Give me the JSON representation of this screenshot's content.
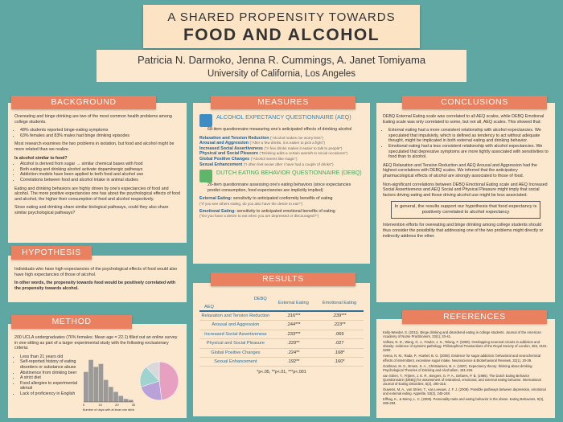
{
  "header": {
    "title_line1": "A SHARED PROPENSITY TOWARDS",
    "title_line2": "FOOD AND ALCOHOL",
    "authors": "Patricia N. Darmoko, Jenna R. Cummings, A. Janet Tomiyama",
    "affiliation": "University of California, Los Angeles"
  },
  "background": {
    "heading": "BACKGROUND",
    "intro": "Overeating and binge drinking are two of the most common health problems among college students.",
    "stats": [
      "48% students reported binge-eating symptoms",
      "63% females and 83% males had binge drinking episodes"
    ],
    "note": "Most research examines the two problems in isolation, but food and alcohol might be more related than we realize.",
    "question": "Is alcohol similar to food?",
    "facts": [
      "Alcohol is derived from sugar → similar chemical bases with food",
      "Both eating and drinking alcohol activate dopaminergic pathways",
      "Addiction models have been applied to both food and alcohol use",
      "Correlations between food and alcohol intake in animal studies"
    ],
    "expectancy": "Eating and drinking behaviors are highly driven by one's expectancies of food and alcohol. The more positive expectancies one has about the psychological effects of food and alcohol, the higher their consumption of food and alcohol respectively.",
    "closing": "Since eating and drinking share similar biological pathways, could they also share similar psychological pathways?"
  },
  "hypothesis": {
    "heading": "HYPOTHESIS",
    "paragraphs": [
      "Individuals who have high expectancies of the psychological effects of food would also have high expectancies of those of alcohol.",
      "In other words, the propensity towards food would be positively correlated with the propensity towards alcohol."
    ]
  },
  "method": {
    "heading": "METHOD",
    "intro": "200 UCLA undergraduates (76% females; Mean age = 22.1) filled out an online survey in one-sitting as part of a larger experimental study with the following exclusionary criteria:",
    "criteria": [
      "Less than 21 years old",
      "Self-reported history of eating disorders or substance abuse",
      "Abstinence from drinking beer",
      "A strict diet",
      "Food allergies to experimental stimuli",
      "Lack of proficiency in English"
    ],
    "chart": {
      "x_label": "Number of days with at least one drink",
      "bins": [
        0,
        3,
        6,
        9,
        12,
        15,
        18,
        21,
        24,
        27,
        30
      ],
      "counts": [
        30,
        42,
        35,
        38,
        22,
        15,
        10,
        6,
        3,
        2
      ],
      "ylim": [
        0,
        45
      ],
      "bar_color": "#9a9a9a",
      "xticks": [
        0,
        10,
        20,
        30
      ],
      "pie": [
        {
          "value": 48,
          "color": "#e8a0c0"
        },
        {
          "value": 22,
          "color": "#b9a2d8"
        },
        {
          "value": 18,
          "color": "#9fd3d0"
        },
        {
          "value": 12,
          "color": "#d9d9d9"
        }
      ]
    }
  },
  "measures": {
    "heading": "MEASURES",
    "aeq": {
      "title": "ALCOHOL EXPECTANCY QUESTIONNAIRE (AEQ)",
      "description": "68-item questionnaire measuring one's anticipated effects of drinking alcohol",
      "scales": [
        {
          "name": "Relaxation and Tension Reduction",
          "example": "(\"Alcohol makes me worry less\")"
        },
        {
          "name": "Arousal and Aggression",
          "example": "(\"After a few drinks, it is easier to pick a fight\")"
        },
        {
          "name": "Increased Social Assertiveness",
          "example": "(\"A few drinks makes it easier to talk to people\")"
        },
        {
          "name": "Physical and Social Pleasure",
          "example": "(\"Drinking adds a certain warmth to social occasions\")"
        },
        {
          "name": "Global Positive Changes",
          "example": "(\"Alcohol seems like magic\")"
        },
        {
          "name": "Sexual Enhancement",
          "example": "(\"I often feel sexier after I have had a couple of drinks\")"
        }
      ]
    },
    "debq": {
      "title": "DUTCH EATING BEHAVIOR QUESTIONNAIRE (DEBQ)",
      "description": "26-item questionnaire assessing one's eating behaviors (since expectancies predict consumption, food expectancies are implicitly implied)",
      "scales": [
        {
          "name": "External Eating:",
          "definition": "sensitivity to anticipated conformity benefits of eating",
          "example": "(\"If you see others eating, do you also have the desire to eat?\")"
        },
        {
          "name": "Emotional Eating:",
          "definition": "sensitivity to anticipated emotional benefits of eating",
          "example": "(\"Do you have a desire to eat when you are depressed or discouraged?\")"
        }
      ]
    }
  },
  "results": {
    "heading": "RESULTS",
    "corner_top": "DEBQ",
    "corner_bottom": "AEQ",
    "columns": [
      "External Eating",
      "Emotional Eating"
    ],
    "rows": [
      {
        "scale": "Relaxation and Tension Reduction",
        "external": ".316***",
        "emotional": ".239***"
      },
      {
        "scale": "Arousal and Aggression",
        "external": ".244***",
        "emotional": ".223**"
      },
      {
        "scale": "Increased Social Assertiveness",
        "external": ".233***",
        "emotional": ".069"
      },
      {
        "scale": "Physical and Social Pleasure",
        "external": ".229**",
        "emotional": ".027"
      },
      {
        "scale": "Global Positive Changes",
        "external": ".224**",
        "emotional": ".168*"
      },
      {
        "scale": "Sexual Enhancement",
        "external": ".192**",
        "emotional": ".160*"
      }
    ],
    "footnote": "*p<.05, **p<.01, ***p<.001"
  },
  "conclusions": {
    "heading": "CONCLUSIONS",
    "intro": "DEBQ External Eating scale was correlated to all AEQ scales, while DEBQ Emotional Eating scale was only correlated to some, but not all, AEQ scales. This showed that:",
    "points": [
      "External eating had a more consistent relationship with alcohol expectancies. We speculated that impulsivity, which is defined as tendency to act without adequate thought, might be implicated in both external eating and drinking behavior.",
      "Emotional eating had a less consistent relationship with alcohol expectancies. We speculated that depressive symptoms are more tightly associated with sensitivities to food than to alcohol."
    ],
    "pharmacology": "AEQ Relaxation and Tension Reduction and AEQ Arousal and Aggression had the highest correlations with DEBQ scales. We inferred that the anticipatory pharmacological effects of alcohol are strongly associated to those of food.",
    "social": "Non-significant correlations between DEBQ Emotional Eating scale and AEQ Increased Social Assertiveness and AEQ Social and Physical Pleasure might imply that social factors driving eating and those driving alcohol use might be less associated.",
    "summary": "In general, the results support our hypothesis that food expectancy is positively correlated to alcohol expectancy",
    "implication": "Intervention efforts for overeating and binge drinking among college students should thus consider the possibility that addressing one of the two problems might directly or indirectly address the other."
  },
  "references": {
    "heading": "REFERENCES",
    "items": [
      "Kelly-Weeder, S. (2011). Binge drinking and disordered eating in college students. Journal of the American Academy of Nurse Practitioners, 23(1), 33-41.",
      "Volkow, N. D., Wang, G. J., Fowler, J. S., Telang, F. (2008). Overlapping neuronal circuits in addiction and obesity: evidence of systems pathology. Philosophical Transactions of the Royal Society of London, 363, 3191-3200.",
      "Avena, N. M., Rada, P., Hoebel, B. G. (2008). Evidence for sugar addiction: behavioral and neurochemical effects of intermittent, excessive sugar intake. Neuroscience & Biobehavioral Reviews, 32(1), 20-39.",
      "Goldman, M. S., Brown, S. A., Christiansen, B. A. (1987). Expectancy theory: thinking about drinking. Psychological Theories of Drinking and Alcoholism, 181-226.",
      "van Strien, T., Frijters, J. E. R., Bergers, G. P. A., Defares, P. B. (1986). The Dutch Eating Behavior Questionnaire (DEBQ) for assessment of restrained, emotional, and external eating behavior. International Journal of Eating Disorders, 5(2), 295-315.",
      "Ouwens, M. A., van Strien, T., van Leeuwe, J. F. J. (2009). Possible pathways between depression, emotional and external eating. Appetite, 53(2), 245-248.",
      "Elfhag, K., & Morey, L. C. (2008). Personality traits and eating behavior in the obese. Eating Behaviors, 9(3), 285-293."
    ]
  }
}
